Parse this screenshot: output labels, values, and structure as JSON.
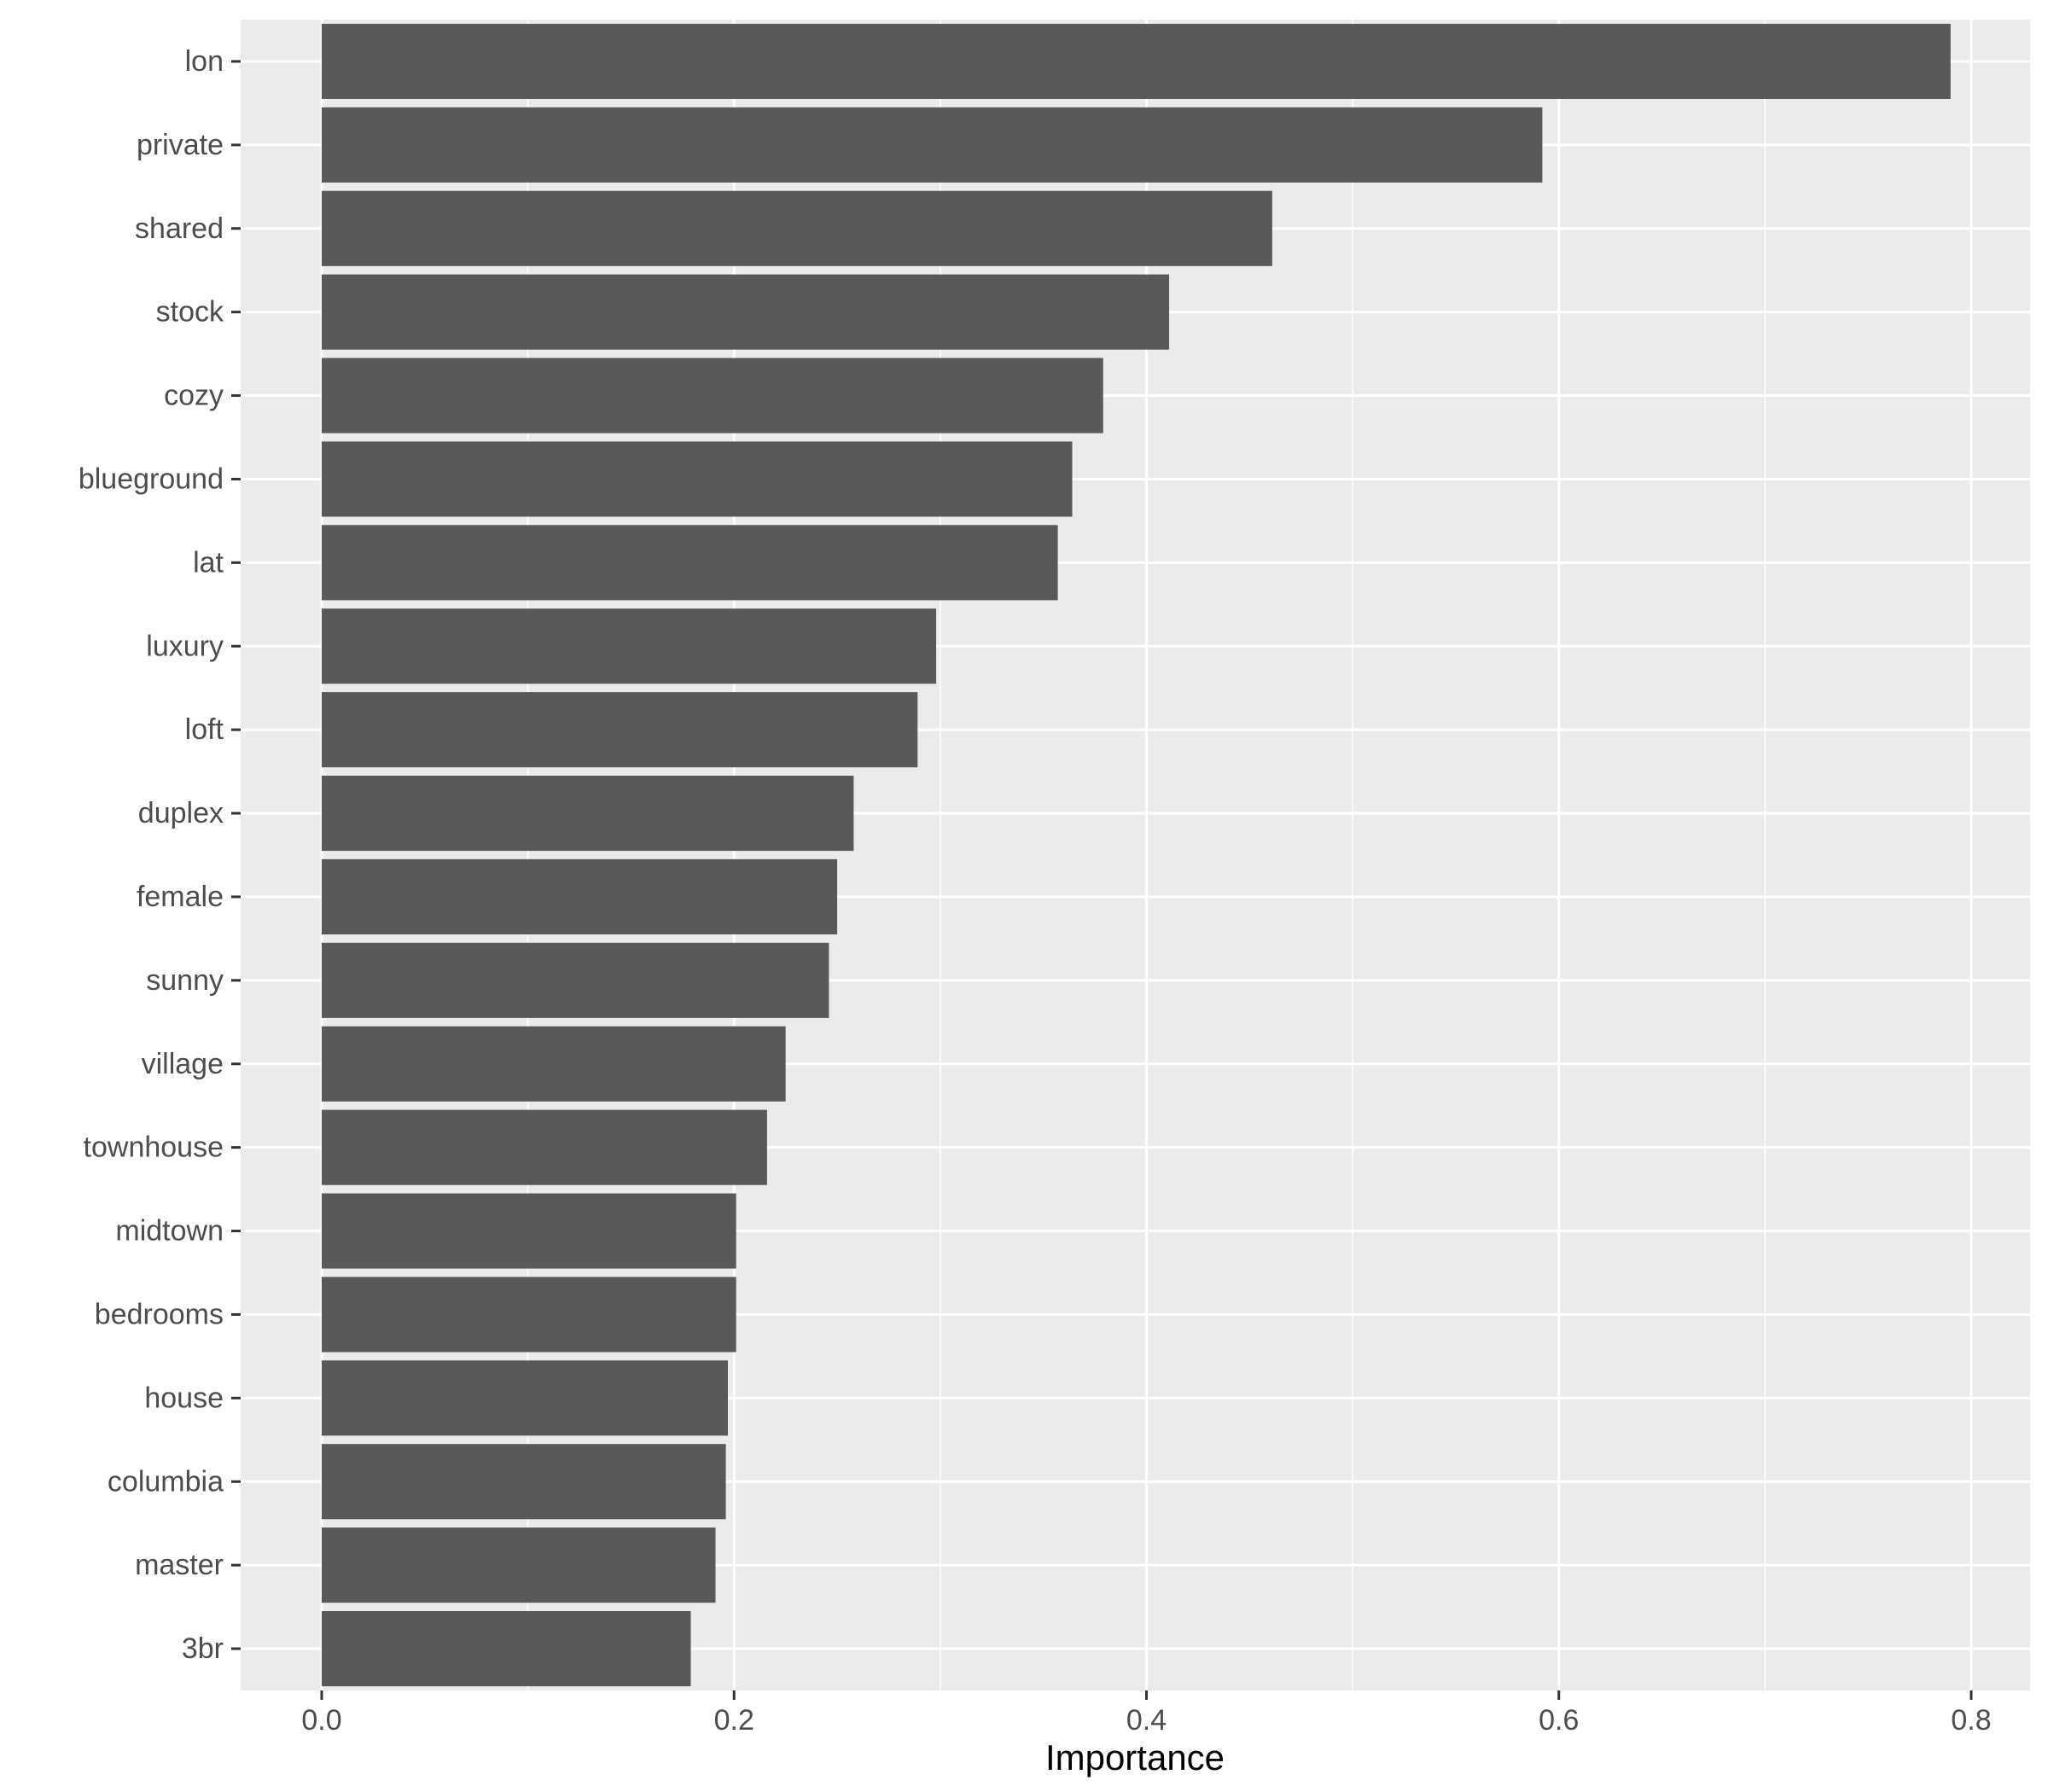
{
  "chart_data": {
    "type": "bar",
    "orientation": "horizontal",
    "categories": [
      "lon",
      "private",
      "shared",
      "stock",
      "cozy",
      "blueground",
      "lat",
      "luxury",
      "loft",
      "duplex",
      "female",
      "sunny",
      "village",
      "townhouse",
      "midtown",
      "bedrooms",
      "house",
      "columbia",
      "master",
      "3br"
    ],
    "values": [
      0.79,
      0.592,
      0.461,
      0.411,
      0.379,
      0.364,
      0.357,
      0.298,
      0.289,
      0.258,
      0.25,
      0.246,
      0.225,
      0.216,
      0.201,
      0.201,
      0.197,
      0.196,
      0.191,
      0.179
    ],
    "title": "",
    "xlabel": "Importance",
    "ylabel": "",
    "xlim": [
      -0.039,
      0.827
    ],
    "xticks": [
      0.0,
      0.2,
      0.4,
      0.6,
      0.8
    ],
    "xtick_labels": [
      "0.0",
      "0.2",
      "0.4",
      "0.6",
      "0.8"
    ],
    "grid": true,
    "legend": "none",
    "colors": {
      "bar": "#595959",
      "panel_background": "#ebebeb",
      "grid_line": "#ffffff",
      "tick_text": "#4d4d4d",
      "tick_mark": "#333333",
      "axis_title": "#000000"
    }
  }
}
